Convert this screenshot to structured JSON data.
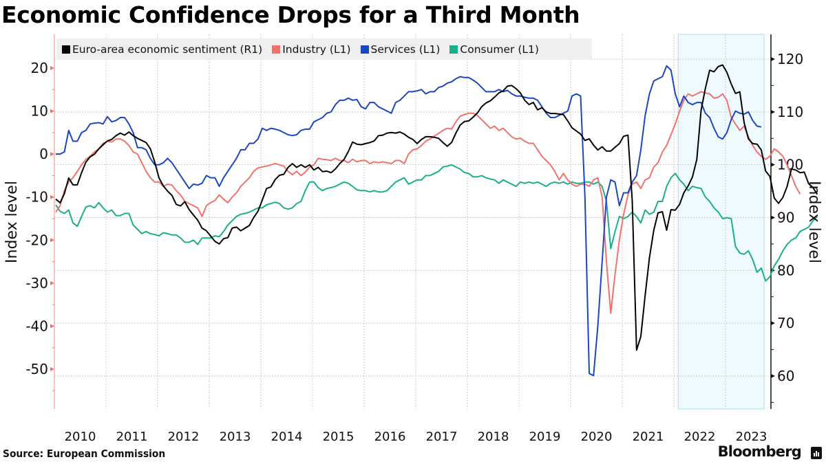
{
  "chart_data": {
    "type": "line",
    "title": "Economic Confidence Drops for a Third Month",
    "source": "Source: European Commission",
    "brand": "Bloomberg",
    "x_start": "2010-01",
    "x_frequency": "monthly",
    "xtick_labels": [
      "2010",
      "2011",
      "2012",
      "2013",
      "2014",
      "2015",
      "2016",
      "2017",
      "2018",
      "2019",
      "2020",
      "2021",
      "2022",
      "2023"
    ],
    "left_axis": {
      "label": "Index level",
      "ylim": [
        -58,
        22
      ],
      "ticks": [
        20,
        10,
        0,
        -10,
        -20,
        -30,
        -40,
        -50
      ],
      "tick_labels": [
        "20",
        "10",
        "0",
        "-10",
        "-20",
        "-30",
        "-40",
        "-50"
      ]
    },
    "right_axis": {
      "label": "Index level",
      "ylim": [
        54,
        124
      ],
      "ticks": [
        120,
        110,
        100,
        90,
        80,
        70,
        60
      ],
      "tick_labels": [
        "120",
        "110",
        "100",
        "90",
        "80",
        "70",
        "60"
      ]
    },
    "shaded_region": {
      "start": "2022-02",
      "end": "2023-09",
      "color": "#eefafd"
    },
    "grid": true,
    "legend_position": "top-left",
    "series": [
      {
        "name": "Euro-area economic sentiment (R1)",
        "axis": "right",
        "color": "#000000",
        "values": [
          93.5,
          92.8,
          94.5,
          97.5,
          96.2,
          96.2,
          98.5,
          100.5,
          101.5,
          102.0,
          103.0,
          103.8,
          104.5,
          104.8,
          105.5,
          106.0,
          105.6,
          106.2,
          105.5,
          105.0,
          104.6,
          104.2,
          103.0,
          100.5,
          97.5,
          96.0,
          95.0,
          94.2,
          92.5,
          92.2,
          93.0,
          91.5,
          90.5,
          89.5,
          88.0,
          87.5,
          86.5,
          85.5,
          85.0,
          86.0,
          86.2,
          88.0,
          88.2,
          87.5,
          88.0,
          88.5,
          90.0,
          91.2,
          93.3,
          95.5,
          95.8,
          97.2,
          98.0,
          98.2,
          99.5,
          100.2,
          99.5,
          100.0,
          99.5,
          100.0,
          99.0,
          99.5,
          98.7,
          98.8,
          98.5,
          99.2,
          100.2,
          101.0,
          102.5,
          104.3,
          103.9,
          103.8,
          104.0,
          104.2,
          104.5,
          105.5,
          105.6,
          106.0,
          106.1,
          106.0,
          106.2,
          105.8,
          105.2,
          104.8,
          104.0,
          104.8,
          105.3,
          105.3,
          105.2,
          105.0,
          104.2,
          103.5,
          104.2,
          106.0,
          107.5,
          108.2,
          108.3,
          109.0,
          109.8,
          111.0,
          111.7,
          112.1,
          112.8,
          113.6,
          114.0,
          114.9,
          115.0,
          114.4,
          113.6,
          112.2,
          111.4,
          111.8,
          110.4,
          110.8,
          110.0,
          109.7,
          109.7,
          109.6,
          109.5,
          108.3,
          107.0,
          106.4,
          105.8,
          104.6,
          104.9,
          103.7,
          102.8,
          103.4,
          102.6,
          102.6,
          103.3,
          104.0,
          105.4,
          105.6,
          93.2,
          64.9,
          67.5,
          75.3,
          82.4,
          87.6,
          90.9,
          91.1,
          87.6,
          91.5,
          91.4,
          92.5,
          94.7,
          96.0,
          97.7,
          101.0,
          110.3,
          114.5,
          117.9,
          117.6,
          118.6,
          118.9,
          117.5,
          115.3,
          113.5,
          113.8,
          108.0,
          104.9,
          104.0,
          103.9,
          102.8,
          98.8,
          97.8,
          93.7,
          92.7,
          93.8,
          95.9,
          99.2,
          99.0,
          98.5,
          98.6,
          96.4,
          95.7,
          94.4
        ],
        "values_note": "approximate readings, right axis"
      },
      {
        "name": "Industry (L1)",
        "axis": "left",
        "color": "#f0726b",
        "values": [
          -13.5,
          -12.0,
          -8.5,
          -6.5,
          -5.5,
          -4.0,
          -2.5,
          -1.2,
          -0.5,
          0.5,
          1.2,
          2.5,
          3.0,
          2.8,
          3.5,
          3.5,
          3.0,
          2.0,
          0.5,
          0.0,
          -2.0,
          -4.0,
          -5.5,
          -6.5,
          -6.5,
          -7.5,
          -7.0,
          -7.2,
          -8.5,
          -9.5,
          -11.0,
          -11.5,
          -12.0,
          -12.5,
          -14.5,
          -12.0,
          -11.3,
          -10.8,
          -9.5,
          -10.5,
          -11.3,
          -10.0,
          -9.0,
          -7.5,
          -6.5,
          -5.5,
          -4.0,
          -3.2,
          -3.0,
          -2.8,
          -2.5,
          -2.2,
          -2.5,
          -2.8,
          -4.0,
          -4.8,
          -4.0,
          -5.0,
          -4.2,
          -3.0,
          -2.5,
          -1.0,
          -1.2,
          -1.3,
          -1.5,
          -1.0,
          -1.5,
          -1.5,
          -2.0,
          -1.2,
          -1.8,
          -1.5,
          -1.5,
          -2.2,
          -1.8,
          -2.0,
          -1.8,
          -2.0,
          -2.2,
          -1.5,
          -1.5,
          -2.2,
          0.0,
          1.0,
          1.2,
          2.0,
          3.0,
          3.5,
          4.2,
          4.8,
          5.5,
          6.0,
          5.8,
          7.5,
          8.8,
          9.2,
          9.5,
          9.5,
          9.0,
          8.0,
          7.0,
          6.0,
          6.5,
          5.5,
          6.0,
          5.0,
          4.0,
          3.5,
          3.7,
          3.0,
          2.5,
          2.5,
          1.0,
          -0.5,
          -1.5,
          -2.5,
          -4.0,
          -6.0,
          -4.5,
          -6.0,
          -7.0,
          -7.5,
          -7.0,
          -7.0,
          -7.5,
          -6.0,
          -5.5,
          -10.0,
          -25.0,
          -37.0,
          -28.0,
          -20.0,
          -14.0,
          -9.5,
          -7.0,
          -6.5,
          -8.0,
          -6.0,
          -5.5,
          -3.0,
          -2.0,
          0.5,
          2.0,
          4.5,
          7.0,
          10.0,
          12.5,
          14.0,
          13.5,
          14.0,
          14.5,
          14.2,
          14.0,
          13.0,
          13.2,
          14.0,
          12.5,
          8.5,
          7.0,
          5.5,
          6.5,
          4.0,
          2.0,
          0.5,
          -0.5,
          -1.2,
          -0.5,
          1.2,
          0.5,
          -0.5,
          -2.5,
          -5.0,
          -7.5,
          -9.3
        ]
      },
      {
        "name": "Services (L1)",
        "axis": "left",
        "color": "#1a46c0",
        "values": [
          0.0,
          0.0,
          0.5,
          5.5,
          3.0,
          3.0,
          5.0,
          5.5,
          7.0,
          7.2,
          7.3,
          7.0,
          8.7,
          7.5,
          7.8,
          8.5,
          8.5,
          7.0,
          5.0,
          1.5,
          1.5,
          1.0,
          -1.0,
          -2.5,
          -2.5,
          -2.0,
          -1.0,
          -2.0,
          -3.5,
          -5.0,
          -6.5,
          -8.0,
          -7.0,
          -7.2,
          -6.8,
          -5.0,
          -5.5,
          -5.5,
          -7.5,
          -5.5,
          -4.0,
          -2.5,
          -1.0,
          1.0,
          1.0,
          2.5,
          2.5,
          3.5,
          6.0,
          5.5,
          6.0,
          5.8,
          5.5,
          5.0,
          4.5,
          4.3,
          4.5,
          5.5,
          5.8,
          5.8,
          7.5,
          8.0,
          8.5,
          9.5,
          9.8,
          11.5,
          12.5,
          12.5,
          13.0,
          12.5,
          12.7,
          11.0,
          10.5,
          12.0,
          12.0,
          11.0,
          10.5,
          10.0,
          9.5,
          12.0,
          12.5,
          13.5,
          14.5,
          14.5,
          14.7,
          15.0,
          14.0,
          14.5,
          14.5,
          15.5,
          15.8,
          16.5,
          16.8,
          17.5,
          18.0,
          17.8,
          17.8,
          17.2,
          16.5,
          15.5,
          14.5,
          14.5,
          14.5,
          15.0,
          14.5,
          14.8,
          14.0,
          13.5,
          13.5,
          13.2,
          13.0,
          13.0,
          12.5,
          11.0,
          9.5,
          8.5,
          8.5,
          9.0,
          9.5,
          10.0,
          13.5,
          14.0,
          13.5,
          -10.0,
          -51.0,
          -51.5,
          -40.0,
          -25.0,
          -10.0,
          -6.0,
          -6.5,
          -12.0,
          -9.0,
          -9.0,
          -6.5,
          -5.0,
          1.0,
          9.0,
          14.0,
          17.0,
          17.5,
          18.0,
          20.5,
          19.5,
          14.0,
          11.0,
          13.5,
          12.0,
          11.5,
          12.0,
          12.0,
          9.5,
          8.5,
          6.0,
          4.0,
          3.5,
          5.0,
          8.0,
          10.0,
          9.5,
          9.3,
          9.8,
          7.8,
          6.5,
          6.3
        ]
      },
      {
        "name": "Consumer (L1)",
        "axis": "left",
        "color": "#1aae8a",
        "values": [
          -11.8,
          -13.3,
          -13.8,
          -13.0,
          -16.0,
          -16.8,
          -14.5,
          -12.3,
          -12.0,
          -12.5,
          -11.3,
          -12.5,
          -13.5,
          -13.0,
          -14.3,
          -14.3,
          -13.8,
          -13.8,
          -16.5,
          -17.5,
          -18.5,
          -18.0,
          -18.5,
          -18.7,
          -19.0,
          -18.3,
          -18.5,
          -18.8,
          -18.8,
          -19.5,
          -20.5,
          -20.5,
          -20.0,
          -21.0,
          -19.5,
          -19.5,
          -19.5,
          -19.0,
          -19.2,
          -18.0,
          -16.5,
          -15.5,
          -14.5,
          -14.0,
          -13.8,
          -13.5,
          -13.0,
          -12.5,
          -12.5,
          -11.8,
          -11.5,
          -11.2,
          -11.5,
          -12.5,
          -12.8,
          -12.5,
          -11.5,
          -11.0,
          -8.5,
          -6.5,
          -6.5,
          -7.8,
          -8.5,
          -8.0,
          -7.8,
          -7.5,
          -7.0,
          -6.5,
          -6.8,
          -7.5,
          -8.3,
          -8.5,
          -8.5,
          -8.8,
          -8.5,
          -8.8,
          -8.8,
          -8.5,
          -7.5,
          -6.5,
          -6.0,
          -5.5,
          -7.0,
          -6.5,
          -6.0,
          -6.0,
          -5.0,
          -5.0,
          -4.5,
          -4.0,
          -3.0,
          -2.8,
          -2.5,
          -3.0,
          -3.5,
          -4.3,
          -4.5,
          -5.3,
          -5.3,
          -5.0,
          -5.5,
          -5.8,
          -6.0,
          -6.8,
          -6.0,
          -6.5,
          -7.0,
          -7.5,
          -6.5,
          -6.8,
          -6.5,
          -6.8,
          -6.5,
          -7.0,
          -7.5,
          -6.8,
          -6.5,
          -6.8,
          -6.5,
          -7.0,
          -6.5,
          -6.8,
          -6.8,
          -6.5,
          -6.5,
          -7.0,
          -6.5,
          -7.5,
          -11.0,
          -22.0,
          -18.0,
          -14.5,
          -15.0,
          -14.5,
          -13.5,
          -14.5,
          -16.0,
          -13.0,
          -14.0,
          -13.5,
          -11.0,
          -11.0,
          -7.5,
          -5.5,
          -4.5,
          -6.0,
          -7.0,
          -8.5,
          -7.5,
          -7.8,
          -8.0,
          -10.0,
          -11.0,
          -12.5,
          -13.5,
          -15.0,
          -14.8,
          -15.0,
          -21.5,
          -23.0,
          -23.3,
          -22.5,
          -24.5,
          -27.5,
          -26.5,
          -29.5,
          -28.5,
          -26.0,
          -24.5,
          -22.5,
          -21.0,
          -20.0,
          -19.5,
          -18.0,
          -17.5,
          -17.0,
          -15.5,
          -14.5
        ]
      }
    ]
  }
}
